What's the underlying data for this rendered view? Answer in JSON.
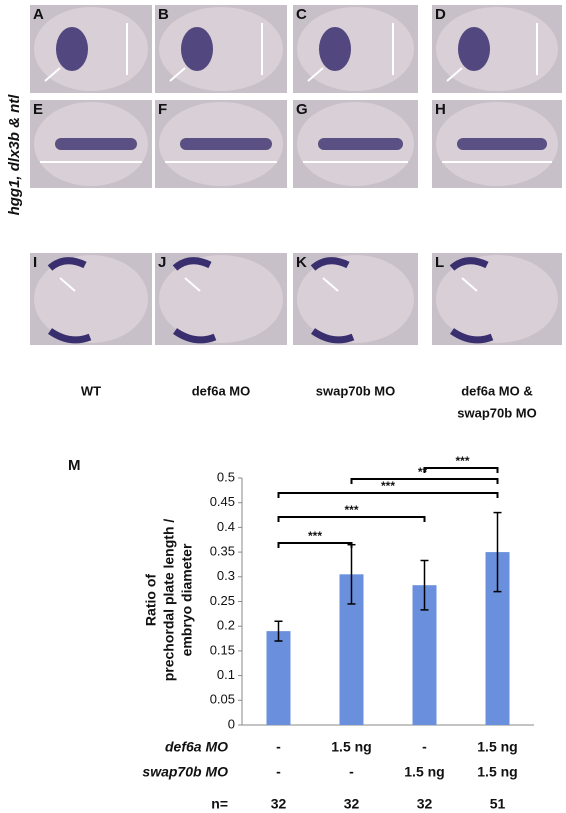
{
  "panels": {
    "letters": [
      "A",
      "B",
      "C",
      "D",
      "E",
      "F",
      "G",
      "H",
      "I",
      "J",
      "K",
      "L"
    ],
    "side_label": "hgg1, dlx3b & ntl",
    "column_labels": [
      [
        "WT"
      ],
      [
        "def6a MO"
      ],
      [
        "swap70b MO"
      ],
      [
        "def6a MO &",
        "swap70b MO"
      ]
    ]
  },
  "chart_data": {
    "type": "bar",
    "panel_label": "M",
    "ylabel": [
      "Ratio of",
      "prechordal plate length /",
      "embryo diameter"
    ],
    "categories": [
      null,
      null,
      null,
      null
    ],
    "values": [
      0.19,
      0.305,
      0.283,
      0.35
    ],
    "errors": [
      0.02,
      0.06,
      0.05,
      0.08
    ],
    "color": "#6a8fdc",
    "ylim": [
      0,
      0.5
    ],
    "yticks": [
      0,
      0.05,
      0.1,
      0.15,
      0.2,
      0.25,
      0.3,
      0.35,
      0.4,
      0.45,
      0.5
    ],
    "significance": [
      {
        "from": 2,
        "to": 3,
        "label": "***"
      },
      {
        "from": 1,
        "to": 3,
        "label": "**"
      },
      {
        "from": 0,
        "to": 3,
        "label": "***"
      },
      {
        "from": 0,
        "to": 2,
        "label": "***"
      },
      {
        "from": 0,
        "to": 1,
        "label": "***"
      }
    ],
    "table": [
      {
        "label": "def6a MO",
        "cells": [
          "-",
          "1.5 ng",
          "-",
          "1.5 ng"
        ]
      },
      {
        "label": "swap70b MO",
        "cells": [
          "-",
          "-",
          "1.5 ng",
          "1.5 ng"
        ]
      },
      {
        "label": "n=",
        "cells": [
          "32",
          "32",
          "32",
          "51"
        ]
      }
    ]
  }
}
